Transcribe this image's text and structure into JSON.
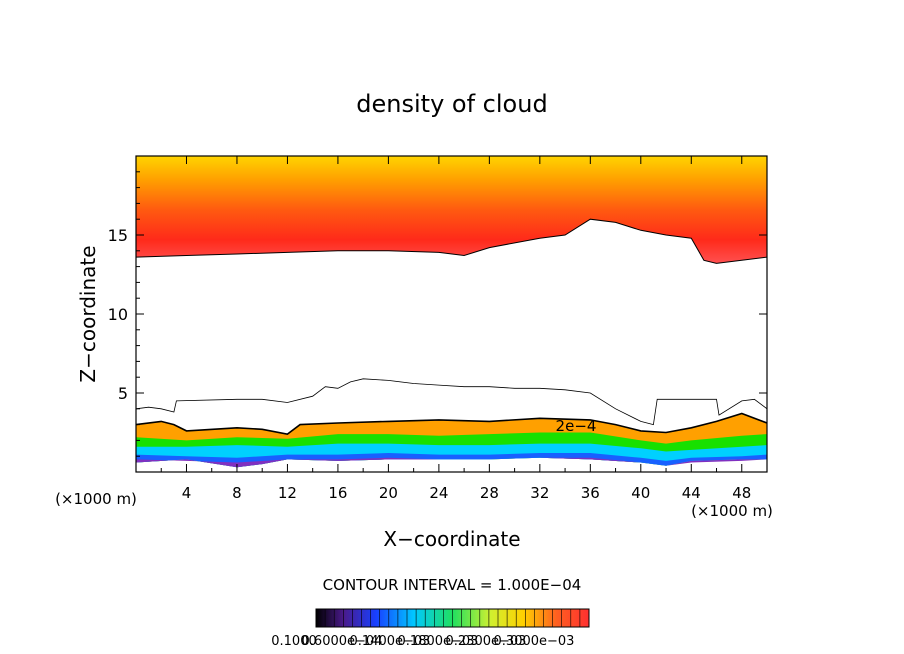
{
  "chart_data": {
    "type": "heatmap",
    "title": "density of cloud",
    "xlabel": "X−coordinate",
    "ylabel": "Z−coordinate",
    "x_unit_label": "(×1000 m)",
    "y_unit_label": "(×1000 m)",
    "xlim": [
      0,
      50
    ],
    "ylim": [
      0,
      20
    ],
    "x_ticks": [
      4,
      8,
      12,
      16,
      20,
      24,
      28,
      32,
      36,
      40,
      44,
      48
    ],
    "x_tick_labels": [
      "4",
      "8",
      "12",
      "16",
      "20",
      "24",
      "28",
      "32",
      "36",
      "40",
      "44",
      "48"
    ],
    "y_ticks": [
      5,
      10,
      15
    ],
    "y_tick_labels": [
      "5",
      "10",
      "15"
    ],
    "contour_interval_text": "CONTOUR INTERVAL = 1.000E−04",
    "contour_label": "2e−4",
    "colorbar_labels": [
      "0.1000",
      "0.6000e−04",
      "0.1400e−03",
      "0.1800e−03",
      "0.2300e−03",
      "0.3000e−03"
    ],
    "colors": {
      "yellow": "#ffd400",
      "orange": "#ff7a00",
      "red": "#ff2a1a",
      "pink": "#ffb0b0",
      "green": "#00e000",
      "cyan": "#00d8ff",
      "blue": "#1860ff",
      "purple": "#8030c0"
    },
    "regions": {
      "upper_layer": {
        "bottom_profile": [
          [
            0,
            13.6
          ],
          [
            4,
            13.7
          ],
          [
            8,
            13.8
          ],
          [
            12,
            13.9
          ],
          [
            16,
            14.0
          ],
          [
            20,
            14.0
          ],
          [
            24,
            13.9
          ],
          [
            26,
            13.7
          ],
          [
            28,
            14.2
          ],
          [
            32,
            14.8
          ],
          [
            34,
            15.0
          ],
          [
            36,
            16.0
          ],
          [
            38,
            15.8
          ],
          [
            40,
            15.3
          ],
          [
            42,
            15.0
          ],
          [
            44,
            14.8
          ],
          [
            45,
            13.4
          ],
          [
            46,
            13.2
          ],
          [
            48,
            13.4
          ],
          [
            50,
            13.6
          ]
        ],
        "top_z": 20
      },
      "lower_layer": {
        "top_profile": [
          [
            0,
            4.0
          ],
          [
            1,
            4.1
          ],
          [
            2,
            4.0
          ],
          [
            3,
            3.8
          ],
          [
            3.2,
            4.5
          ],
          [
            8,
            4.6
          ],
          [
            10,
            4.6
          ],
          [
            12,
            4.4
          ],
          [
            14,
            4.8
          ],
          [
            15,
            5.4
          ],
          [
            16,
            5.3
          ],
          [
            17,
            5.7
          ],
          [
            18,
            5.9
          ],
          [
            20,
            5.8
          ],
          [
            22,
            5.6
          ],
          [
            24,
            5.5
          ],
          [
            26,
            5.4
          ],
          [
            28,
            5.4
          ],
          [
            30,
            5.3
          ],
          [
            32,
            5.3
          ],
          [
            34,
            5.2
          ],
          [
            36,
            5.0
          ],
          [
            38,
            4.0
          ],
          [
            40,
            3.2
          ],
          [
            41,
            3.0
          ],
          [
            41.3,
            4.6
          ],
          [
            44,
            4.6
          ],
          [
            46,
            4.6
          ],
          [
            46.2,
            3.6
          ],
          [
            48,
            4.5
          ],
          [
            49,
            4.6
          ],
          [
            50,
            4.0
          ]
        ],
        "contour_2e4": [
          [
            0,
            3.0
          ],
          [
            2,
            3.2
          ],
          [
            3,
            3.0
          ],
          [
            4,
            2.6
          ],
          [
            8,
            2.8
          ],
          [
            10,
            2.7
          ],
          [
            12,
            2.4
          ],
          [
            13,
            3.0
          ],
          [
            16,
            3.1
          ],
          [
            20,
            3.2
          ],
          [
            24,
            3.3
          ],
          [
            28,
            3.2
          ],
          [
            32,
            3.4
          ],
          [
            36,
            3.3
          ],
          [
            38,
            3.0
          ],
          [
            40,
            2.6
          ],
          [
            42,
            2.5
          ],
          [
            44,
            2.8
          ],
          [
            46,
            3.2
          ],
          [
            48,
            3.7
          ],
          [
            50,
            3.1
          ]
        ],
        "green_top": [
          [
            0,
            2.2
          ],
          [
            4,
            2.0
          ],
          [
            8,
            2.2
          ],
          [
            12,
            2.1
          ],
          [
            16,
            2.4
          ],
          [
            20,
            2.4
          ],
          [
            24,
            2.3
          ],
          [
            28,
            2.4
          ],
          [
            32,
            2.5
          ],
          [
            36,
            2.5
          ],
          [
            40,
            2.0
          ],
          [
            42,
            1.8
          ],
          [
            44,
            2.0
          ],
          [
            48,
            2.3
          ],
          [
            50,
            2.4
          ]
        ],
        "cyan_top": [
          [
            0,
            1.6
          ],
          [
            4,
            1.6
          ],
          [
            8,
            1.7
          ],
          [
            12,
            1.6
          ],
          [
            16,
            1.8
          ],
          [
            20,
            1.8
          ],
          [
            24,
            1.7
          ],
          [
            28,
            1.7
          ],
          [
            32,
            1.8
          ],
          [
            36,
            1.8
          ],
          [
            40,
            1.5
          ],
          [
            42,
            1.3
          ],
          [
            44,
            1.4
          ],
          [
            48,
            1.6
          ],
          [
            50,
            1.7
          ]
        ],
        "blue_top": [
          [
            0,
            1.1
          ],
          [
            4,
            1.0
          ],
          [
            8,
            0.9
          ],
          [
            12,
            1.1
          ],
          [
            16,
            1.1
          ],
          [
            20,
            1.2
          ],
          [
            24,
            1.1
          ],
          [
            28,
            1.1
          ],
          [
            32,
            1.2
          ],
          [
            36,
            1.2
          ],
          [
            40,
            0.9
          ],
          [
            42,
            0.7
          ],
          [
            44,
            0.9
          ],
          [
            48,
            1.0
          ],
          [
            50,
            1.1
          ]
        ],
        "purple_bottom": [
          [
            0,
            0.6
          ],
          [
            4,
            0.8
          ],
          [
            8,
            0.3
          ],
          [
            10,
            0.5
          ],
          [
            12,
            0.8
          ],
          [
            16,
            0.7
          ],
          [
            20,
            0.8
          ],
          [
            24,
            0.8
          ],
          [
            28,
            0.8
          ],
          [
            32,
            0.9
          ],
          [
            36,
            0.8
          ],
          [
            40,
            0.6
          ],
          [
            42,
            0.4
          ],
          [
            44,
            0.7
          ],
          [
            48,
            0.8
          ],
          [
            50,
            0.8
          ]
        ]
      }
    }
  }
}
